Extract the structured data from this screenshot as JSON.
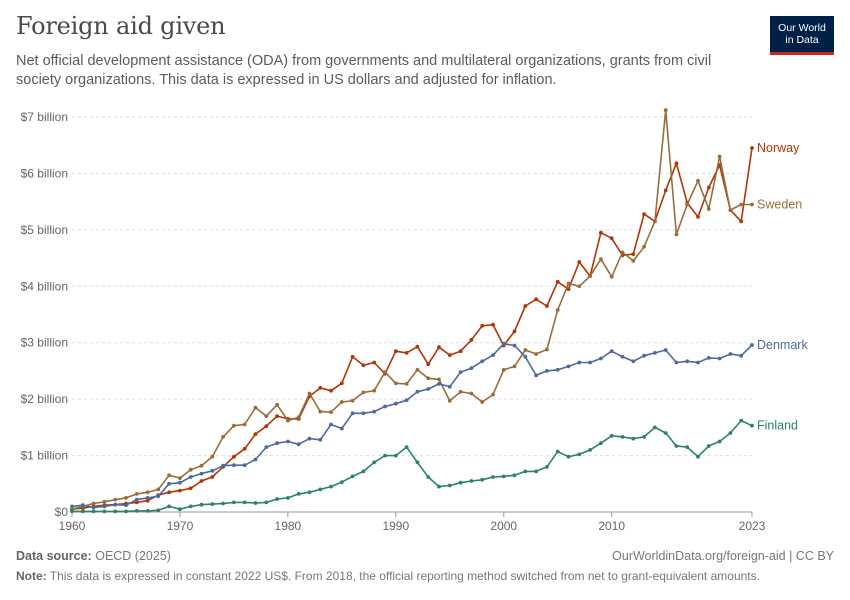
{
  "header": {
    "title": "Foreign aid given",
    "subtitle": "Net official development assistance (ODA) from governments and multilateral organizations, grants from civil society organizations. This data is expressed in US dollars and adjusted for inflation."
  },
  "logo": {
    "line1": "Our World",
    "line2": "in Data"
  },
  "footer": {
    "source_label": "Data source:",
    "source_text": "OECD (2025)",
    "url_text": "OurWorldinData.org/foreign-aid | CC BY",
    "note_label": "Note:",
    "note_text": "This data is expressed in constant 2022 US$. From 2018, the official reporting method switched from net to grant-equivalent amounts."
  },
  "chart_data": {
    "type": "line",
    "title": "Foreign aid given",
    "xlabel": "",
    "ylabel": "",
    "xlim": [
      1960,
      2023
    ],
    "ylim": [
      0,
      7
    ],
    "x_ticks": [
      1960,
      1970,
      1980,
      1990,
      2000,
      2010,
      2023
    ],
    "y_ticks": [
      {
        "value": 0,
        "label": "$0"
      },
      {
        "value": 1,
        "label": "$1 billion"
      },
      {
        "value": 2,
        "label": "$2 billion"
      },
      {
        "value": 3,
        "label": "$3 billion"
      },
      {
        "value": 4,
        "label": "$4 billion"
      },
      {
        "value": 5,
        "label": "$5 billion"
      },
      {
        "value": 6,
        "label": "$6 billion"
      },
      {
        "value": 7,
        "label": "$7 billion"
      }
    ],
    "grid": "horizontal dashed",
    "legend": "labels at right end of lines",
    "units": "US$ billion",
    "series": [
      {
        "name": "Norway",
        "color": "#b13507",
        "start_year": 1960,
        "values": [
          0.05,
          0.07,
          0.1,
          0.12,
          0.13,
          0.15,
          0.17,
          0.2,
          0.3,
          0.35,
          0.38,
          0.42,
          0.55,
          0.62,
          0.8,
          0.98,
          1.12,
          1.38,
          1.52,
          1.7,
          1.65,
          1.65,
          2.05,
          2.2,
          2.15,
          2.28,
          2.75,
          2.6,
          2.65,
          2.45,
          2.85,
          2.82,
          2.93,
          2.62,
          2.92,
          2.78,
          2.85,
          3.05,
          3.3,
          3.32,
          2.95,
          3.2,
          3.65,
          3.77,
          3.65,
          4.08,
          3.95,
          4.43,
          4.18,
          4.95,
          4.85,
          4.55,
          4.57,
          5.28,
          5.15,
          5.7,
          6.18,
          5.48,
          5.23,
          5.75,
          6.15,
          5.35,
          5.15,
          6.45
        ]
      },
      {
        "name": "Sweden",
        "color": "#996d39",
        "start_year": 1960,
        "values": [
          0.05,
          0.1,
          0.15,
          0.18,
          0.22,
          0.25,
          0.32,
          0.35,
          0.4,
          0.65,
          0.6,
          0.75,
          0.82,
          0.98,
          1.33,
          1.53,
          1.55,
          1.85,
          1.7,
          1.9,
          1.62,
          1.68,
          2.1,
          1.78,
          1.77,
          1.95,
          1.97,
          2.12,
          2.15,
          2.48,
          2.28,
          2.27,
          2.52,
          2.37,
          2.35,
          1.97,
          2.13,
          2.1,
          1.95,
          2.08,
          2.52,
          2.58,
          2.87,
          2.8,
          2.88,
          3.58,
          4.05,
          4.0,
          4.18,
          4.48,
          4.17,
          4.6,
          4.45,
          4.7,
          5.15,
          7.12,
          4.92,
          5.45,
          5.87,
          5.37,
          6.3,
          5.35,
          5.45,
          5.45
        ]
      },
      {
        "name": "Denmark",
        "color": "#4c6a9c",
        "start_year": 1960,
        "values": [
          0.1,
          0.12,
          0.08,
          0.1,
          0.13,
          0.12,
          0.22,
          0.25,
          0.28,
          0.5,
          0.52,
          0.62,
          0.68,
          0.73,
          0.82,
          0.83,
          0.83,
          0.93,
          1.15,
          1.22,
          1.25,
          1.2,
          1.3,
          1.28,
          1.55,
          1.48,
          1.75,
          1.75,
          1.78,
          1.87,
          1.92,
          1.98,
          2.13,
          2.18,
          2.27,
          2.22,
          2.48,
          2.55,
          2.67,
          2.78,
          2.98,
          2.95,
          2.75,
          2.42,
          2.5,
          2.52,
          2.58,
          2.65,
          2.65,
          2.72,
          2.85,
          2.75,
          2.67,
          2.77,
          2.82,
          2.87,
          2.65,
          2.67,
          2.65,
          2.73,
          2.72,
          2.8,
          2.77,
          2.96
        ]
      },
      {
        "name": "Finland",
        "color": "#2c8465",
        "start_year": 1960,
        "values": [
          0.01,
          0.01,
          0.01,
          0.01,
          0.01,
          0.01,
          0.02,
          0.02,
          0.03,
          0.1,
          0.05,
          0.1,
          0.13,
          0.14,
          0.15,
          0.17,
          0.17,
          0.16,
          0.17,
          0.23,
          0.25,
          0.32,
          0.35,
          0.4,
          0.45,
          0.53,
          0.63,
          0.72,
          0.88,
          1.0,
          1.0,
          1.15,
          0.88,
          0.62,
          0.45,
          0.47,
          0.52,
          0.55,
          0.57,
          0.62,
          0.63,
          0.65,
          0.72,
          0.72,
          0.8,
          1.07,
          0.98,
          1.02,
          1.1,
          1.22,
          1.35,
          1.33,
          1.3,
          1.33,
          1.5,
          1.4,
          1.17,
          1.15,
          0.98,
          1.17,
          1.25,
          1.4,
          1.62,
          1.53
        ]
      }
    ]
  }
}
